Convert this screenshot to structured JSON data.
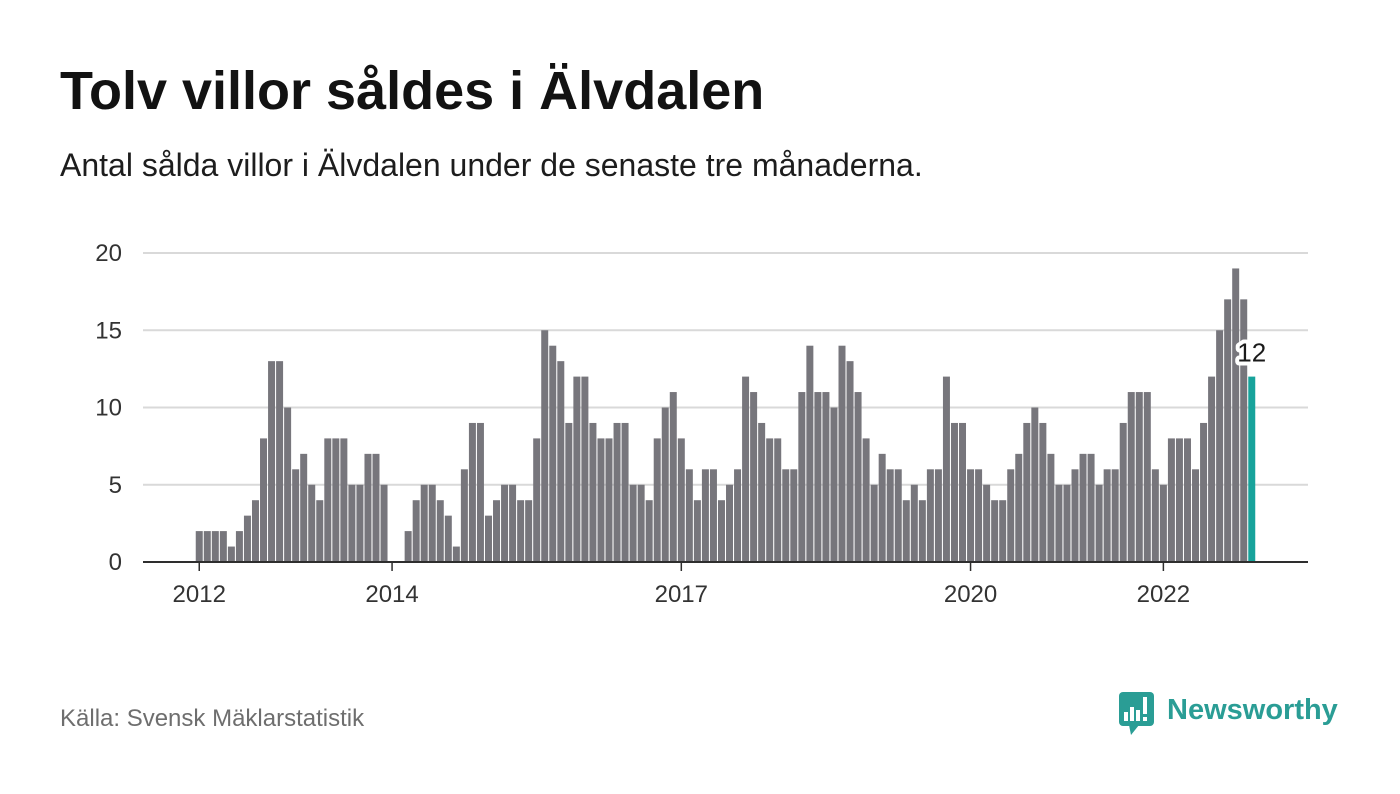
{
  "source": "Källa: Svensk Mäklarstatistik",
  "logo": {
    "text": "Newsworthy",
    "icon": "newsworthy-logo-icon"
  },
  "colors": {
    "bar": "#77767c",
    "highlight": "#17a39b",
    "grid": "#d9d9d9",
    "axis": "#2e2e2e",
    "logo": "#2a9d95"
  },
  "chart_data": {
    "type": "bar",
    "title": "Tolv villor såldes i Älvdalen",
    "subtitle": "Antal sålda villor i Älvdalen under de senaste tre månaderna.",
    "x": [
      "2012-01",
      "2012-02",
      "2012-03",
      "2012-04",
      "2012-05",
      "2012-06",
      "2012-07",
      "2012-08",
      "2012-09",
      "2012-10",
      "2012-11",
      "2012-12",
      "2013-01",
      "2013-02",
      "2013-03",
      "2013-04",
      "2013-05",
      "2013-06",
      "2013-07",
      "2013-08",
      "2013-09",
      "2013-10",
      "2013-11",
      "2013-12",
      "2014-01",
      "2014-02",
      "2014-03",
      "2014-04",
      "2014-05",
      "2014-06",
      "2014-07",
      "2014-08",
      "2014-09",
      "2014-10",
      "2014-11",
      "2014-12",
      "2015-01",
      "2015-02",
      "2015-03",
      "2015-04",
      "2015-05",
      "2015-06",
      "2015-07",
      "2015-08",
      "2015-09",
      "2015-10",
      "2015-11",
      "2015-12",
      "2016-01",
      "2016-02",
      "2016-03",
      "2016-04",
      "2016-05",
      "2016-06",
      "2016-07",
      "2016-08",
      "2016-09",
      "2016-10",
      "2016-11",
      "2016-12",
      "2017-01",
      "2017-02",
      "2017-03",
      "2017-04",
      "2017-05",
      "2017-06",
      "2017-07",
      "2017-08",
      "2017-09",
      "2017-10",
      "2017-11",
      "2017-12",
      "2018-01",
      "2018-02",
      "2018-03",
      "2018-04",
      "2018-05",
      "2018-06",
      "2018-07",
      "2018-08",
      "2018-09",
      "2018-10",
      "2018-11",
      "2018-12",
      "2019-01",
      "2019-02",
      "2019-03",
      "2019-04",
      "2019-05",
      "2019-06",
      "2019-07",
      "2019-08",
      "2019-09",
      "2019-10",
      "2019-11",
      "2019-12",
      "2020-01",
      "2020-02",
      "2020-03",
      "2020-04",
      "2020-05",
      "2020-06",
      "2020-07",
      "2020-08",
      "2020-09",
      "2020-10",
      "2020-11",
      "2020-12",
      "2021-01",
      "2021-02",
      "2021-03",
      "2021-04",
      "2021-05",
      "2021-06",
      "2021-07",
      "2021-08",
      "2021-09",
      "2021-10",
      "2021-11",
      "2021-12",
      "2022-01",
      "2022-02",
      "2022-03",
      "2022-04",
      "2022-05",
      "2022-06",
      "2022-07",
      "2022-08",
      "2022-09",
      "2022-10",
      "2022-11",
      "2022-12"
    ],
    "values": [
      2,
      2,
      2,
      2,
      1,
      2,
      3,
      4,
      8,
      13,
      13,
      10,
      6,
      7,
      5,
      4,
      8,
      8,
      8,
      5,
      5,
      7,
      7,
      5,
      0,
      0,
      2,
      4,
      5,
      5,
      4,
      3,
      1,
      6,
      9,
      9,
      3,
      4,
      5,
      5,
      4,
      4,
      8,
      15,
      14,
      13,
      9,
      12,
      12,
      9,
      8,
      8,
      9,
      9,
      5,
      5,
      4,
      8,
      10,
      11,
      8,
      6,
      4,
      6,
      6,
      4,
      5,
      6,
      12,
      11,
      9,
      8,
      8,
      6,
      6,
      11,
      14,
      11,
      11,
      10,
      14,
      13,
      11,
      8,
      5,
      7,
      6,
      6,
      4,
      5,
      4,
      6,
      6,
      12,
      9,
      9,
      6,
      6,
      5,
      4,
      4,
      6,
      7,
      9,
      10,
      9,
      7,
      5,
      5,
      6,
      7,
      7,
      5,
      6,
      6,
      9,
      11,
      11,
      11,
      6,
      5,
      8,
      8,
      8,
      6,
      9,
      12,
      15,
      17,
      19,
      17,
      12
    ],
    "xlim": [
      "2011-06",
      "2023-07"
    ],
    "ylim": [
      0,
      20
    ],
    "yticks": [
      0,
      5,
      10,
      15,
      20
    ],
    "xticks": [
      "2012",
      "2014",
      "2017",
      "2020",
      "2022"
    ],
    "grid": true,
    "highlight": {
      "x": "2022-12",
      "label": "12"
    }
  }
}
